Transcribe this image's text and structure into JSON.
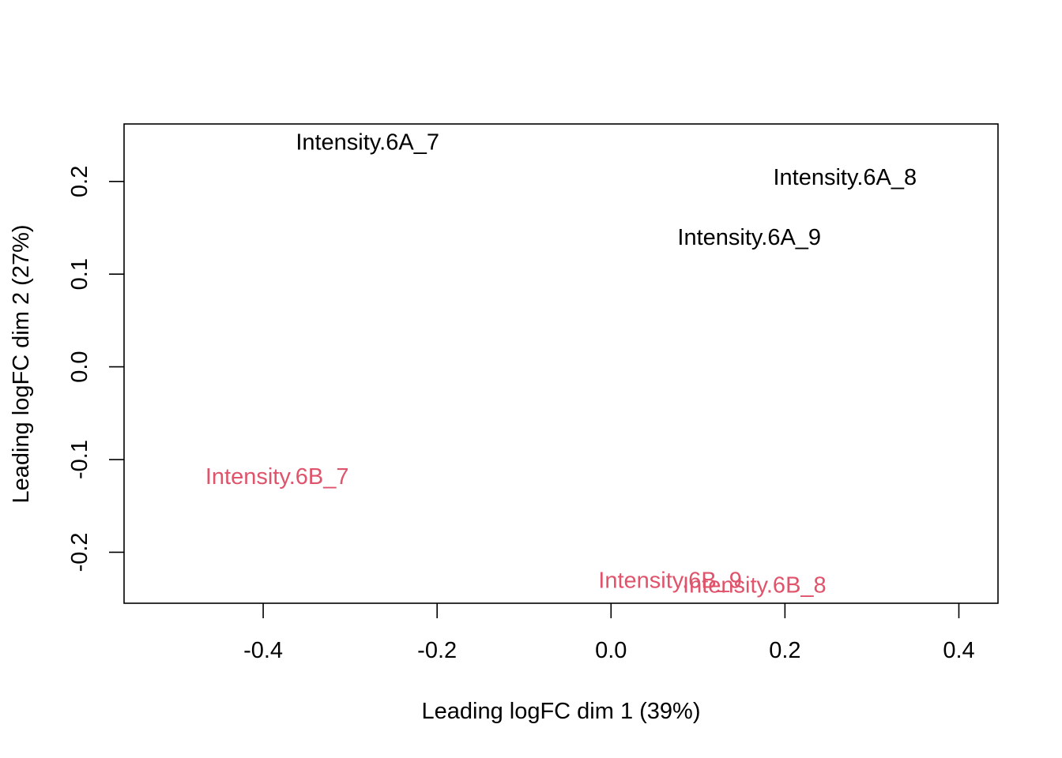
{
  "chart_data": {
    "type": "scatter",
    "title": "",
    "xlabel": "Leading logFC dim 1 (39%)",
    "ylabel": "Leading logFC dim 2 (27%)",
    "xlim": [
      -0.56,
      0.445
    ],
    "ylim": [
      -0.255,
      0.262
    ],
    "x_ticks": [
      {
        "value": -0.4,
        "label": "-0.4"
      },
      {
        "value": -0.2,
        "label": "-0.2"
      },
      {
        "value": 0.0,
        "label": "0.0"
      },
      {
        "value": 0.2,
        "label": "0.2"
      },
      {
        "value": 0.4,
        "label": "0.4"
      }
    ],
    "y_ticks": [
      {
        "value": -0.2,
        "label": "-0.2"
      },
      {
        "value": -0.1,
        "label": "-0.1"
      },
      {
        "value": 0.0,
        "label": "0.0"
      },
      {
        "value": 0.1,
        "label": "0.1"
      },
      {
        "value": 0.2,
        "label": "0.2"
      }
    ],
    "grid": false,
    "legend": "none",
    "groups": {
      "6A": {
        "color": "#000000"
      },
      "6B": {
        "color": "#DF536B"
      }
    },
    "points": [
      {
        "label": "Intensity.6A_7",
        "group": "6A",
        "x": -0.28,
        "y": 0.243
      },
      {
        "label": "Intensity.6A_8",
        "group": "6A",
        "x": 0.269,
        "y": 0.205
      },
      {
        "label": "Intensity.6A_9",
        "group": "6A",
        "x": 0.159,
        "y": 0.14
      },
      {
        "label": "Intensity.6B_7",
        "group": "6B",
        "x": -0.384,
        "y": -0.118
      },
      {
        "label": "Intensity.6B_8",
        "group": "6B",
        "x": 0.165,
        "y": -0.235
      },
      {
        "label": "Intensity.6B_9",
        "group": "6B",
        "x": 0.068,
        "y": -0.23
      }
    ]
  }
}
